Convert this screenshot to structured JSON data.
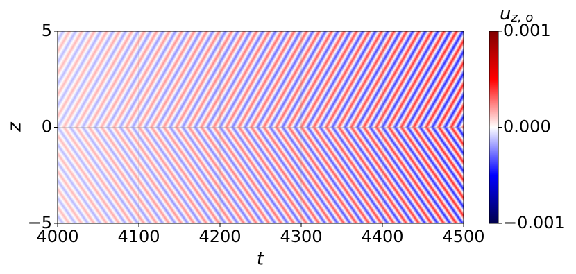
{
  "chart_data": {
    "type": "heatmap",
    "xlabel": "t",
    "ylabel": "z",
    "xlim": [
      4000,
      4500
    ],
    "xticks": [
      4000,
      4100,
      4200,
      4300,
      4400,
      4500
    ],
    "ylim": [
      -5,
      5
    ],
    "yticks": [
      {
        "value": -5,
        "label": "−5"
      },
      0,
      5
    ],
    "grid": true,
    "colorbar": {
      "label": "u",
      "label_sub": "z, o",
      "lim": [
        -0.001,
        0.001
      ],
      "ticks": [
        {
          "value": -0.001,
          "label": "−0.001"
        },
        {
          "value": 0,
          "label": "0.000"
        },
        {
          "value": 0.001,
          "label": "0.001"
        }
      ],
      "colors": [
        "#00004c",
        "#0000ff",
        "#ffffff",
        "#ff0000",
        "#800000"
      ]
    }
  }
}
